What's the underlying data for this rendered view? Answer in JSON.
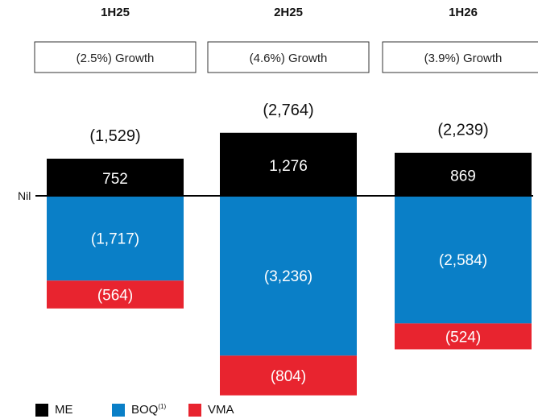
{
  "chart_data": {
    "type": "bar",
    "stacked": true,
    "categories": [
      "1H25",
      "2H25",
      "1H26"
    ],
    "growth_labels": [
      "(2.5%) Growth",
      "(4.6%) Growth",
      "(3.9%) Growth"
    ],
    "totals": [
      "(1,529)",
      "(2,764)",
      "(2,239)"
    ],
    "zero_label": "Nil",
    "series": [
      {
        "name": "ME",
        "color": "#000000",
        "values": [
          752,
          1276,
          869
        ],
        "labels": [
          "752",
          "1,276",
          "869"
        ]
      },
      {
        "name": "BOQ",
        "legend_footnote": "(1)",
        "color": "#0a7fc7",
        "values": [
          -1717,
          -3236,
          -2584
        ],
        "labels": [
          "(1,717)",
          "(3,236)",
          "(2,584)"
        ]
      },
      {
        "name": "VMA",
        "color": "#e8242f",
        "values": [
          -564,
          -804,
          -524
        ],
        "labels": [
          "(564)",
          "(804)",
          "(524)"
        ]
      }
    ]
  }
}
